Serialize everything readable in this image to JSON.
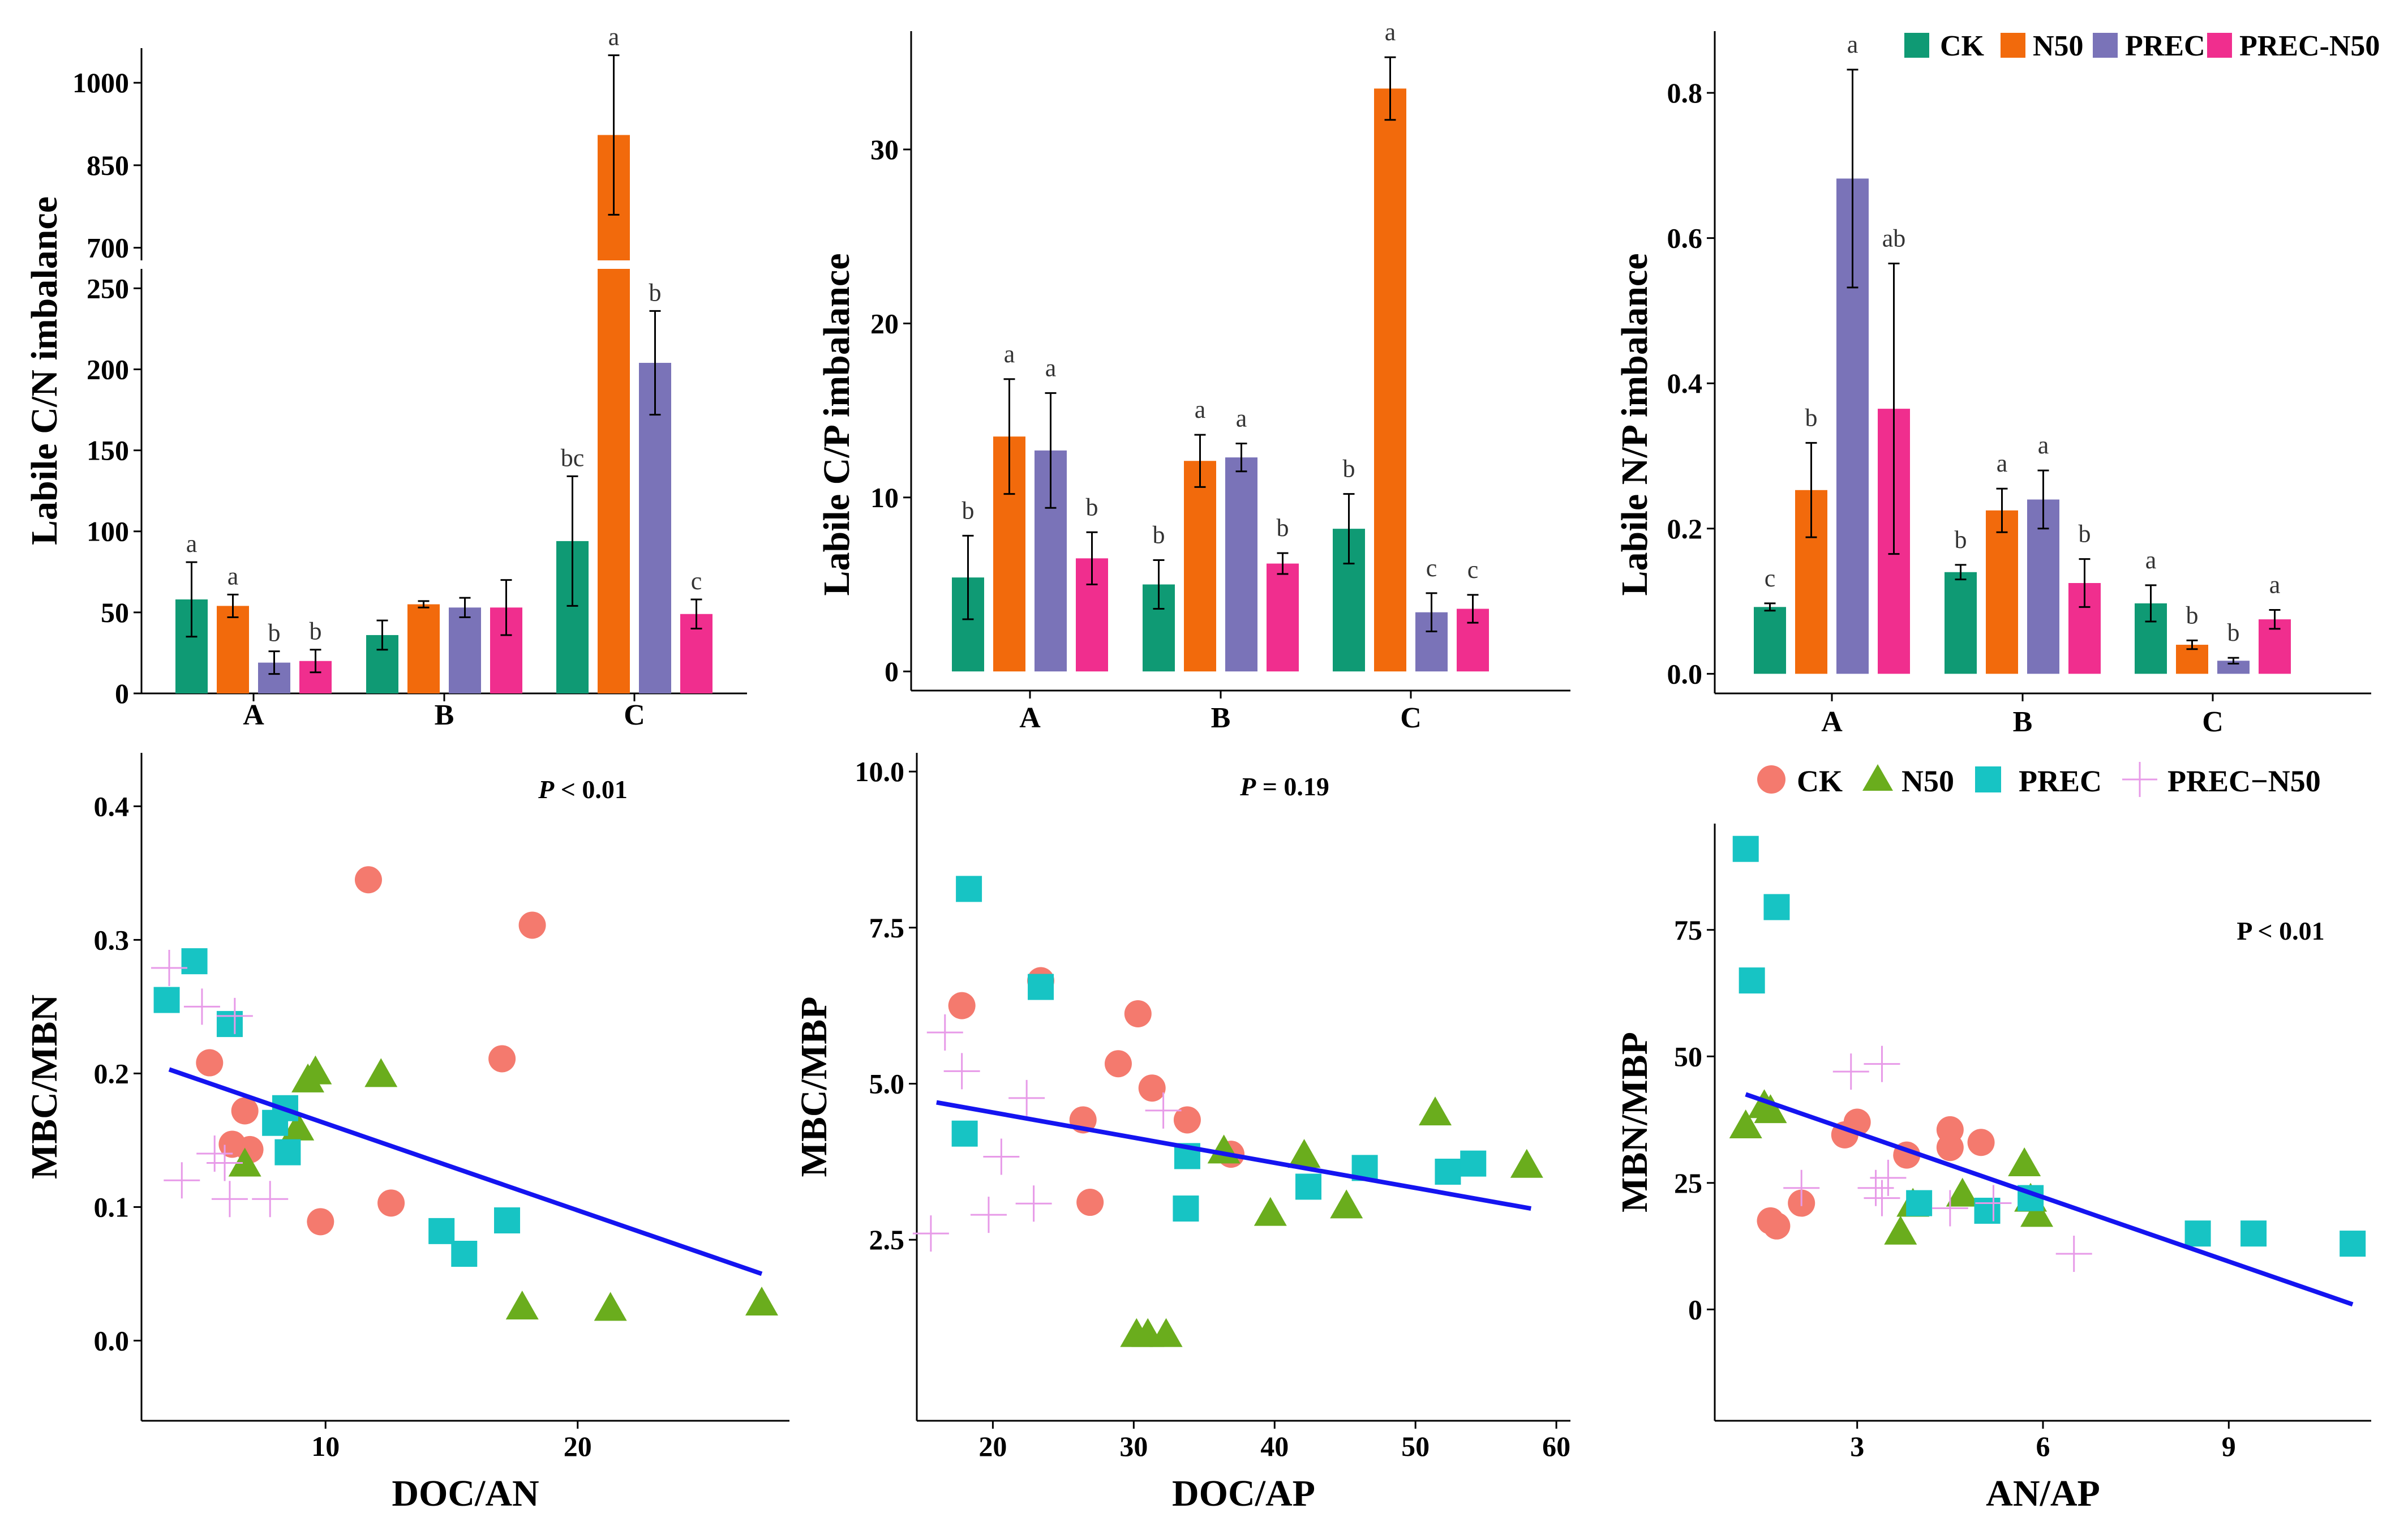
{
  "colors": {
    "CK": "#0f9a74",
    "N50": "#f26a0c",
    "PREC": "#7a73b8",
    "PREC_N50": "#f02e8e",
    "pt_CK": "#f47a6e",
    "pt_N50": "#6aad1d",
    "pt_PREC": "#17c4c4",
    "pt_PREC_N50": "#e79ae8",
    "reg": "#1414f0"
  },
  "legend_top": {
    "items": [
      {
        "key": "CK",
        "label": "CK"
      },
      {
        "key": "N50",
        "label": "N50"
      },
      {
        "key": "PREC",
        "label": "PREC"
      },
      {
        "key": "PREC_N50",
        "label": "PREC-N50"
      }
    ]
  },
  "legend_bottom": {
    "items": [
      {
        "key": "pt_CK",
        "shape": "circle",
        "label": "CK"
      },
      {
        "key": "pt_N50",
        "shape": "triangle",
        "label": "N50"
      },
      {
        "key": "pt_PREC",
        "shape": "square",
        "label": "PREC"
      },
      {
        "key": "pt_PREC_N50",
        "shape": "plus",
        "label": "PREC−N50"
      }
    ]
  },
  "chart_data": [
    {
      "id": "cn",
      "type": "bar",
      "ylabel": "Labile C/N imbalance",
      "categories": [
        "A",
        "B",
        "C"
      ],
      "series_names": [
        "CK",
        "N50",
        "PREC",
        "PREC-N50"
      ],
      "values": [
        [
          58,
          54,
          19,
          20
        ],
        [
          36,
          55,
          53,
          53
        ],
        [
          94,
          905,
          204,
          49
        ]
      ],
      "errors": [
        [
          23,
          7,
          7,
          7
        ],
        [
          9,
          2,
          6,
          17
        ],
        [
          40,
          145,
          32,
          9
        ]
      ],
      "letters": [
        [
          "a",
          "a",
          "b",
          "b"
        ],
        [
          "",
          "",
          "",
          ""
        ],
        [
          "bc",
          "a",
          "b",
          "c"
        ]
      ],
      "broken_axis": true,
      "lower_ylim": [
        0,
        262
      ],
      "lower_yticks": [
        0,
        50,
        100,
        150,
        200,
        250
      ],
      "upper_ylim": [
        677,
        1063
      ],
      "upper_yticks": [
        700,
        850,
        1000
      ]
    },
    {
      "id": "cp",
      "type": "bar",
      "ylabel": "Labile C/P imbalance",
      "categories": [
        "A",
        "B",
        "C"
      ],
      "series_names": [
        "CK",
        "N50",
        "PREC",
        "PREC-N50"
      ],
      "values": [
        [
          5.4,
          13.5,
          12.7,
          6.5
        ],
        [
          5.0,
          12.1,
          12.3,
          6.2
        ],
        [
          8.2,
          33.5,
          3.4,
          3.6
        ]
      ],
      "errors": [
        [
          2.4,
          3.3,
          3.3,
          1.5
        ],
        [
          1.4,
          1.5,
          0.8,
          0.6
        ],
        [
          2.0,
          1.8,
          1.1,
          0.8
        ]
      ],
      "letters": [
        [
          "b",
          "a",
          "a",
          "b"
        ],
        [
          "b",
          "a",
          "a",
          "b"
        ],
        [
          "b",
          "a",
          "c",
          "c"
        ]
      ],
      "ylim": [
        -1.1,
        36.8
      ],
      "yticks": [
        0,
        10,
        20,
        30
      ]
    },
    {
      "id": "np",
      "type": "bar",
      "ylabel": "Labile N/P imbalance",
      "categories": [
        "A",
        "B",
        "C"
      ],
      "series_names": [
        "CK",
        "N50",
        "PREC",
        "PREC-N50"
      ],
      "values": [
        [
          0.092,
          0.253,
          0.682,
          0.365
        ],
        [
          0.14,
          0.225,
          0.24,
          0.125
        ],
        [
          0.097,
          0.04,
          0.018,
          0.075
        ]
      ],
      "errors": [
        [
          0.005,
          0.065,
          0.15,
          0.2
        ],
        [
          0.01,
          0.03,
          0.04,
          0.033
        ],
        [
          0.025,
          0.006,
          0.004,
          0.013
        ]
      ],
      "letters": [
        [
          "c",
          "b",
          "a",
          "ab"
        ],
        [
          "b",
          "a",
          "a",
          "b"
        ],
        [
          "a",
          "b",
          "b",
          "a"
        ]
      ],
      "ylim": [
        -0.027,
        0.885
      ],
      "yticks": [
        0.0,
        0.2,
        0.4,
        0.6,
        0.8
      ],
      "ytick_labels": [
        "0.0",
        "0.2",
        "0.4",
        "0.6",
        "0.8"
      ]
    },
    {
      "id": "s1",
      "type": "scatter",
      "xlabel": "DOC/AN",
      "ylabel": "MBC/MBN",
      "annotation": "P < 0.01",
      "xlim": [
        2.7,
        28.4
      ],
      "xticks": [
        10,
        20
      ],
      "ylim": [
        -0.06,
        0.44
      ],
      "yticks": [
        0.0,
        0.1,
        0.2,
        0.3,
        0.4
      ],
      "ytick_labels": [
        "0.0",
        "0.1",
        "0.2",
        "0.3",
        "0.4"
      ],
      "regression": [
        [
          3.8,
          0.203
        ],
        [
          27.3,
          0.05
        ]
      ],
      "points": {
        "CK": [
          [
            5.4,
            0.208
          ],
          [
            6.3,
            0.147
          ],
          [
            6.8,
            0.172
          ],
          [
            7.0,
            0.143
          ],
          [
            9.8,
            0.089
          ],
          [
            11.7,
            0.345
          ],
          [
            12.6,
            0.103
          ],
          [
            17.0,
            0.211
          ],
          [
            18.2,
            0.311
          ]
        ],
        "N50": [
          [
            6.8,
            0.133
          ],
          [
            8.9,
            0.16
          ],
          [
            9.3,
            0.196
          ],
          [
            9.6,
            0.202
          ],
          [
            12.2,
            0.2
          ],
          [
            17.8,
            0.026
          ],
          [
            21.3,
            0.025
          ],
          [
            27.3,
            0.029
          ]
        ],
        "PREC": [
          [
            3.7,
            0.255
          ],
          [
            4.8,
            0.284
          ],
          [
            6.2,
            0.237
          ],
          [
            8.0,
            0.163
          ],
          [
            8.4,
            0.174
          ],
          [
            8.5,
            0.141
          ],
          [
            14.6,
            0.082
          ],
          [
            15.5,
            0.065
          ],
          [
            17.2,
            0.09
          ]
        ],
        "PREC_N50": [
          [
            3.8,
            0.279
          ],
          [
            4.3,
            0.12
          ],
          [
            5.1,
            0.25
          ],
          [
            5.6,
            0.14
          ],
          [
            6.0,
            0.133
          ],
          [
            6.2,
            0.106
          ],
          [
            6.4,
            0.243
          ],
          [
            7.8,
            0.106
          ]
        ]
      }
    },
    {
      "id": "s2",
      "type": "scatter",
      "xlabel": "DOC/AP",
      "ylabel": "MBC/MBP",
      "annotation": "P = 0.19",
      "xlim": [
        14.6,
        61.0
      ],
      "xticks": [
        20,
        30,
        40,
        50,
        60
      ],
      "ylim": [
        -0.4,
        10.3
      ],
      "yticks": [
        2.5,
        5.0,
        7.5,
        10.0
      ],
      "ytick_labels": [
        "2.5",
        "5.0",
        "7.5",
        "10.0"
      ],
      "regression": [
        [
          16.0,
          4.7
        ],
        [
          58.2,
          3.0
        ]
      ],
      "points": {
        "CK": [
          [
            17.8,
            6.25
          ],
          [
            23.4,
            6.65
          ],
          [
            26.4,
            4.42
          ],
          [
            26.9,
            3.1
          ],
          [
            28.9,
            5.32
          ],
          [
            30.3,
            6.12
          ],
          [
            31.3,
            4.93
          ],
          [
            33.8,
            4.42
          ],
          [
            36.9,
            3.87
          ]
        ],
        "N50": [
          [
            30.2,
            1.0
          ],
          [
            31.0,
            1.0
          ],
          [
            32.3,
            1.0
          ],
          [
            36.4,
            3.94
          ],
          [
            39.7,
            2.94
          ],
          [
            42.1,
            3.87
          ],
          [
            45.1,
            3.06
          ],
          [
            51.4,
            4.55
          ],
          [
            57.9,
            3.71
          ]
        ],
        "PREC": [
          [
            18.0,
            4.2
          ],
          [
            18.3,
            8.12
          ],
          [
            23.4,
            6.55
          ],
          [
            33.8,
            3.84
          ],
          [
            33.7,
            3.0
          ],
          [
            42.4,
            3.35
          ],
          [
            46.4,
            3.65
          ],
          [
            52.3,
            3.59
          ],
          [
            54.1,
            3.72
          ]
        ],
        "PREC_N50": [
          [
            15.6,
            2.6
          ],
          [
            16.6,
            5.82
          ],
          [
            17.8,
            5.2
          ],
          [
            19.7,
            2.9
          ],
          [
            20.6,
            3.83
          ],
          [
            22.4,
            4.77
          ],
          [
            22.9,
            3.08
          ],
          [
            32.1,
            4.57
          ]
        ]
      }
    },
    {
      "id": "s3",
      "type": "scatter",
      "xlabel": "AN/AP",
      "ylabel": "MBN/MBP",
      "annotation": "P < 0.01",
      "xlim": [
        0.7,
        11.3
      ],
      "xticks": [
        3,
        6,
        9
      ],
      "ylim": [
        -22,
        96
      ],
      "yticks": [
        0,
        25,
        50,
        75
      ],
      "regression": [
        [
          1.2,
          42.5
        ],
        [
          11.0,
          1.0
        ]
      ],
      "points": {
        "CK": [
          [
            1.6,
            17.5
          ],
          [
            1.7,
            16.5
          ],
          [
            2.1,
            21.0
          ],
          [
            2.8,
            34.5
          ],
          [
            3.0,
            37.0
          ],
          [
            3.8,
            30.5
          ],
          [
            4.5,
            32.0
          ],
          [
            4.5,
            35.5
          ],
          [
            5.0,
            33.0
          ]
        ],
        "N50": [
          [
            1.2,
            36.5
          ],
          [
            1.5,
            40.5
          ],
          [
            1.6,
            39.5
          ],
          [
            3.7,
            15.5
          ],
          [
            3.9,
            21.0
          ],
          [
            4.7,
            23.0
          ],
          [
            5.7,
            29.0
          ],
          [
            5.8,
            22.0
          ],
          [
            5.9,
            19.0
          ]
        ],
        "PREC": [
          [
            1.2,
            91.0
          ],
          [
            1.3,
            65.0
          ],
          [
            1.7,
            79.5
          ],
          [
            4.0,
            21.0
          ],
          [
            5.1,
            19.5
          ],
          [
            5.8,
            22.0
          ],
          [
            8.5,
            15.0
          ],
          [
            9.4,
            15.0
          ],
          [
            11.0,
            13.0
          ]
        ],
        "PREC_N50": [
          [
            2.1,
            24.0
          ],
          [
            2.9,
            47.0
          ],
          [
            3.4,
            48.5
          ],
          [
            3.3,
            24.0
          ],
          [
            3.4,
            22.0
          ],
          [
            3.5,
            26.0
          ],
          [
            4.5,
            20.0
          ],
          [
            5.2,
            21.0
          ],
          [
            6.5,
            11.0
          ]
        ]
      }
    }
  ]
}
